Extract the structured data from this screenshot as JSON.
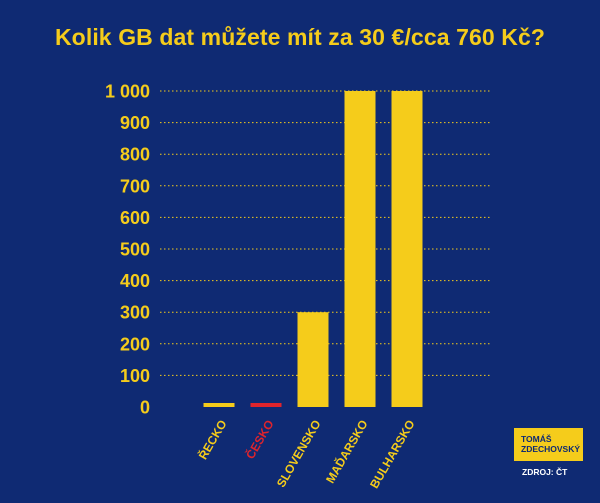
{
  "chart_data": {
    "type": "bar",
    "title": "Kolik GB dat můžete mít za 30 €/cca 760 Kč?",
    "xlabel": "",
    "ylabel": "",
    "categories": [
      "ŘECKO",
      "ČESKO",
      "SLOVENSKO",
      "MAĎARSKO",
      "BULHARSKO"
    ],
    "values": [
      8,
      10,
      300,
      1000,
      1000
    ],
    "ylim": [
      0,
      1000
    ],
    "yticks": [
      0,
      100,
      200,
      300,
      400,
      500,
      600,
      700,
      800,
      900,
      1000
    ],
    "ytick_labels": [
      "0",
      "100",
      "200",
      "300",
      "400",
      "500",
      "600",
      "700",
      "800",
      "900",
      "1 000"
    ],
    "grid": true,
    "legend": "none",
    "colors": {
      "background": "#0f2a73",
      "bar": "#f5cc1b",
      "highlight_bar": "#e0242c",
      "text": "#f5cc1b",
      "highlight_text": "#e0242c",
      "grid": "#f5cc1b"
    },
    "highlight_index": 1
  },
  "branding": {
    "logo_line1": "TOMÁŠ",
    "logo_line2": "ZDECHOVSKÝ",
    "source": "ZDROJ: ČT"
  }
}
